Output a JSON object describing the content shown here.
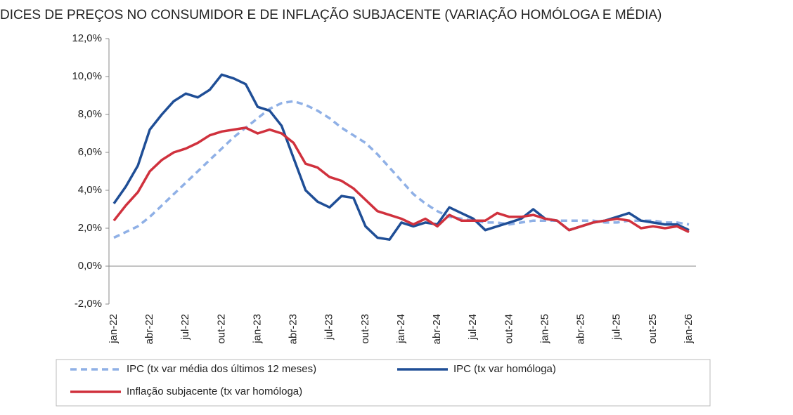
{
  "chart_data": {
    "type": "line",
    "title": "DICES DE PREÇOS NO CONSUMIDOR E DE INFLAÇÃO SUBJACENTE (VARIAÇÃO HOMÓLOGA E MÉDIA)",
    "categories": [
      "jan-22",
      null,
      null,
      "abr-22",
      null,
      null,
      "jul-22",
      null,
      null,
      "out-22",
      null,
      null,
      "jan-23",
      null,
      null,
      "abr-23",
      null,
      null,
      "jul-23",
      null,
      null,
      "out-23",
      null,
      null,
      "jan-24",
      null,
      null,
      "abr-24",
      null,
      null,
      "jul-24",
      null,
      null,
      "out-24",
      null,
      null,
      "jan-25",
      null,
      null,
      "abr-25",
      null,
      null,
      "jul-25",
      null,
      null,
      "out-25",
      null,
      null,
      "jan-26"
    ],
    "series": [
      {
        "name": "IPC (tx var média dos últimos 12 meses)",
        "color": "#8fb0e6",
        "dashed": true,
        "values": [
          1.5,
          1.8,
          2.1,
          2.6,
          3.2,
          3.8,
          4.4,
          5.0,
          5.6,
          6.2,
          6.8,
          7.3,
          7.8,
          8.3,
          8.6,
          8.7,
          8.5,
          8.2,
          7.8,
          7.3,
          6.9,
          6.5,
          5.9,
          5.2,
          4.5,
          3.8,
          3.3,
          2.9,
          2.6,
          2.5,
          2.4,
          2.3,
          2.3,
          2.2,
          2.3,
          2.4,
          2.4,
          2.4,
          2.4,
          2.4,
          2.4,
          2.3,
          2.3,
          2.4,
          2.4,
          2.4,
          2.3,
          2.3,
          2.2
        ]
      },
      {
        "name": "IPC (tx var homóloga)",
        "color": "#1f4e96",
        "dashed": false,
        "values": [
          3.3,
          4.2,
          5.3,
          7.2,
          8.0,
          8.7,
          9.1,
          8.9,
          9.3,
          10.1,
          9.9,
          9.6,
          8.4,
          8.2,
          7.4,
          5.7,
          4.0,
          3.4,
          3.1,
          3.7,
          3.6,
          2.1,
          1.5,
          1.4,
          2.3,
          2.1,
          2.3,
          2.2,
          3.1,
          2.8,
          2.5,
          1.9,
          2.1,
          2.3,
          2.5,
          3.0,
          2.5,
          2.4,
          1.9,
          2.1,
          2.3,
          2.4,
          2.6,
          2.8,
          2.4,
          2.3,
          2.2,
          2.2,
          1.9
        ]
      },
      {
        "name": "Inflação subjacente (tx var homóloga)",
        "color": "#d0313d",
        "dashed": false,
        "values": [
          2.4,
          3.2,
          3.9,
          5.0,
          5.6,
          6.0,
          6.2,
          6.5,
          6.9,
          7.1,
          7.2,
          7.3,
          7.0,
          7.2,
          7.0,
          6.5,
          5.4,
          5.2,
          4.7,
          4.5,
          4.1,
          3.5,
          2.9,
          2.7,
          2.5,
          2.2,
          2.5,
          2.1,
          2.7,
          2.4,
          2.4,
          2.4,
          2.8,
          2.6,
          2.6,
          2.7,
          2.5,
          2.4,
          1.9,
          2.1,
          2.3,
          2.4,
          2.5,
          2.4,
          2.0,
          2.1,
          2.0,
          2.1,
          1.8
        ]
      }
    ],
    "ylim": [
      -2,
      12
    ],
    "yticks": [
      {
        "value": -2,
        "label": "-2,0%"
      },
      {
        "value": 0,
        "label": "0,0%"
      },
      {
        "value": 2,
        "label": "2,0%"
      },
      {
        "value": 4,
        "label": "4,0%"
      },
      {
        "value": 6,
        "label": "6,0%"
      },
      {
        "value": 8,
        "label": "8,0%"
      },
      {
        "value": 10,
        "label": "10,0%"
      },
      {
        "value": 12,
        "label": "12,0%"
      }
    ],
    "grid": false
  }
}
